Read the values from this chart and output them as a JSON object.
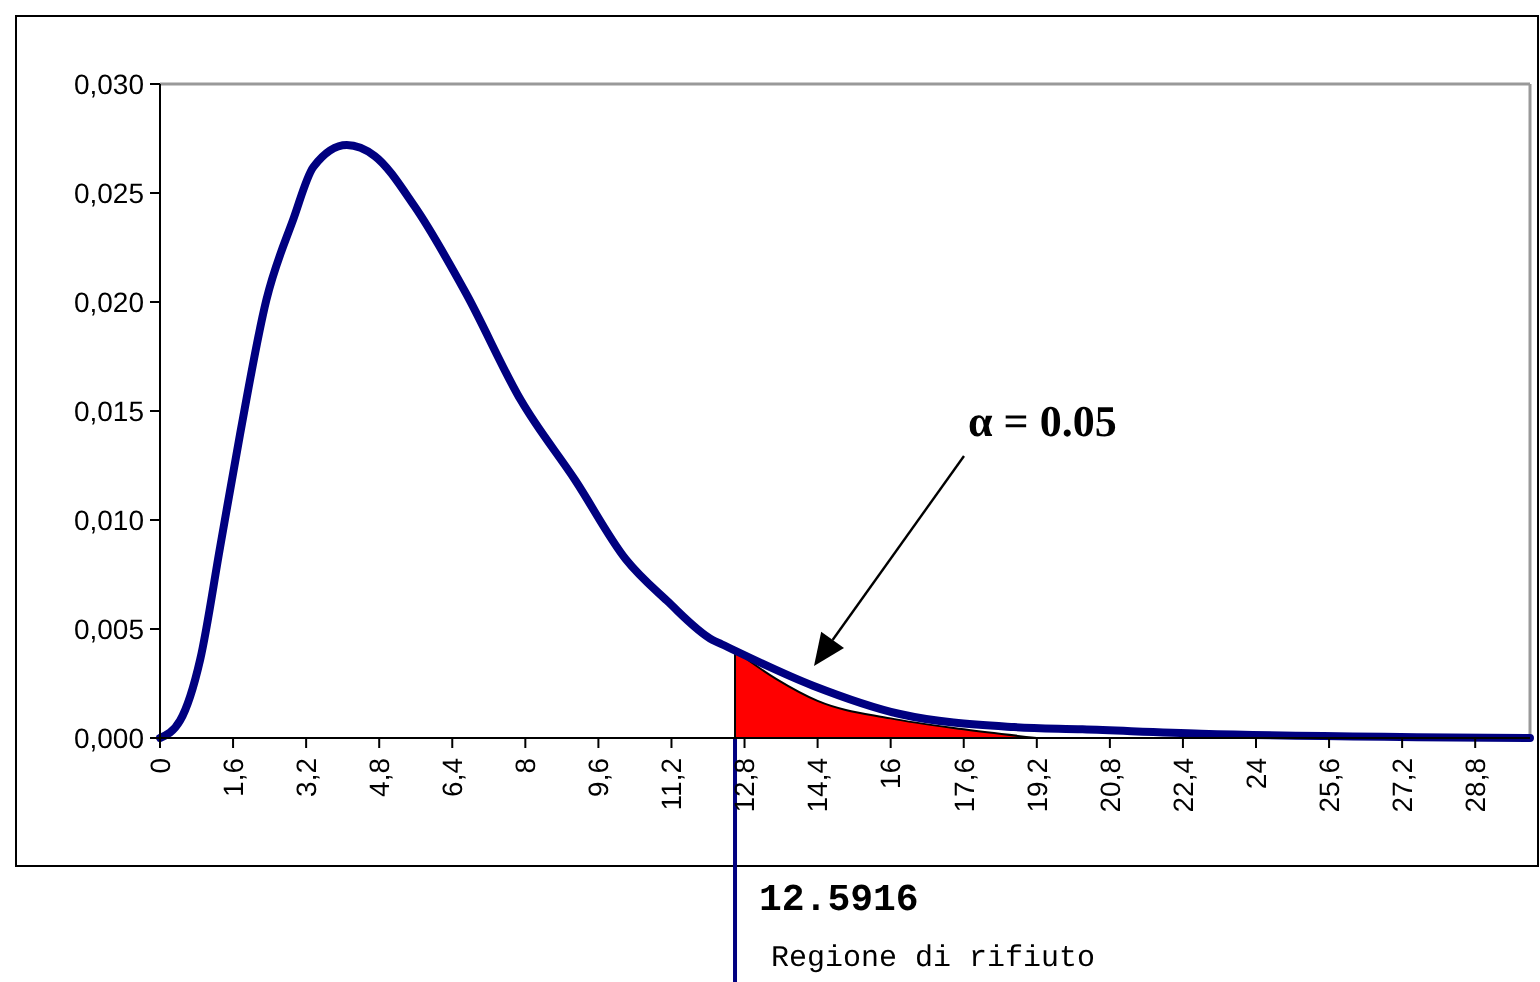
{
  "chart_data": {
    "type": "line",
    "x": [
      0,
      0.44,
      0.88,
      1.32,
      1.75,
      2.33,
      2.92,
      3.36,
      4.09,
      4.7,
      5.57,
      6.7,
      7.9,
      9.1,
      10.2,
      11.1,
      12.1,
      12.3,
      14.3,
      16.2,
      18.7,
      20.2,
      22.8,
      30
    ],
    "series": [
      {
        "color": "#000080",
        "values": [
          0,
          0.0008,
          0.0036,
          0.0088,
          0.0139,
          0.0201,
          0.0238,
          0.0262,
          0.0272,
          0.0267,
          0.0244,
          0.0204,
          0.0155,
          0.0118,
          0.0082,
          0.0063,
          0.0045,
          0.0043,
          0.0024,
          0.0011,
          0.0005,
          0.0004,
          0.0002,
          0
        ]
      },
      {
        "type": "area",
        "color": "#ff0000",
        "x": [
          12.5916,
          13.5,
          14.4,
          16,
          17.6,
          19.2
        ],
        "values": [
          0.004,
          0.0027,
          0.0017,
          0.0009,
          0.0004,
          0
        ]
      }
    ],
    "xlim": [
      0,
      30
    ],
    "xticks": [
      0,
      {
        "value": 1.6,
        "label": "1,6"
      },
      {
        "value": 3.2,
        "label": "3,2"
      },
      {
        "value": 4.8,
        "label": "4,8"
      },
      {
        "value": 6.4,
        "label": "6,4"
      },
      8,
      {
        "value": 9.6,
        "label": "9,6"
      },
      {
        "value": 11.2,
        "label": "11,2"
      },
      {
        "value": 12.8,
        "label": "12,8"
      },
      {
        "value": 14.4,
        "label": "14,4"
      },
      16,
      {
        "value": 17.6,
        "label": "17,6"
      },
      {
        "value": 19.2,
        "label": "19,2"
      },
      {
        "value": 20.8,
        "label": "20,8"
      },
      {
        "value": 22.4,
        "label": "22,4"
      },
      24,
      {
        "value": 25.6,
        "label": "25,6"
      },
      {
        "value": 27.2,
        "label": "27,2"
      },
      {
        "value": 28.8,
        "label": "28,8"
      }
    ],
    "ylim": [
      0,
      0.03
    ],
    "yticks": [
      {
        "value": 0,
        "label": "0,000"
      },
      {
        "value": 0.005,
        "label": "0,005"
      },
      {
        "value": 0.01,
        "label": "0,010"
      },
      {
        "value": 0.015,
        "label": "0,015"
      },
      {
        "value": 0.02,
        "label": "0,020"
      },
      {
        "value": 0.025,
        "label": "0,025"
      },
      {
        "value": 0.03,
        "label": "0,030"
      }
    ],
    "ref_lines": [
      {
        "axis": "x",
        "value": 12.5916,
        "label": "12.5916",
        "color": "#000080"
      }
    ],
    "annotations": [
      "α = 0.05",
      "Regione di rifiuto"
    ],
    "grid": false
  }
}
